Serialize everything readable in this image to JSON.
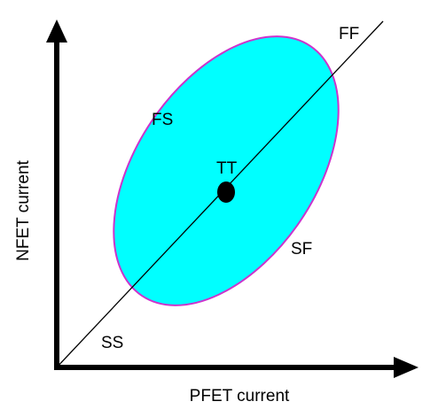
{
  "axes": {
    "x_label": "PFET current",
    "y_label": "NFET current"
  },
  "corners": {
    "ff": "FF",
    "fs": "FS",
    "tt": "TT",
    "sf": "SF",
    "ss": "SS"
  },
  "colors": {
    "region_fill": "#00FFFF",
    "region_outline": "#CC33CC",
    "axes": "#000000",
    "diagonal": "#000000",
    "tt_marker": "#000000"
  }
}
